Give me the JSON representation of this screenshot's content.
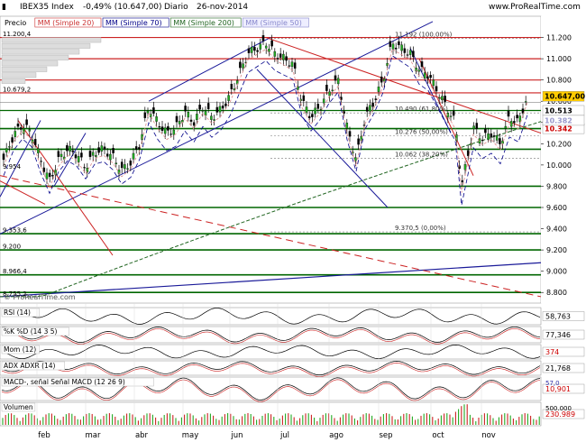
{
  "header": {
    "symbol": "IBEX35 Index",
    "change": "-0,49% (10.647,00)",
    "period": "Diario",
    "date": "26-nov-2014",
    "brand": "www.ProRealTime.com"
  },
  "chart_data": {
    "type": "candlestick",
    "legend": [
      "Precio",
      "MM (Simple 20)",
      "MM (Simple 70)",
      "MM (Simple 200)",
      "MM (Simple 50)"
    ],
    "legend_colors": [
      "#000000",
      "#cc3333",
      "#000088",
      "#226622",
      "#8888cc"
    ],
    "ylim": [
      8700,
      11400
    ],
    "ticks": [
      {
        "v": 11200,
        "l": "11.200"
      },
      {
        "v": 11000,
        "l": "11.000"
      },
      {
        "v": 10800,
        "l": "10.800"
      },
      {
        "v": 10600,
        "l": "10.600"
      },
      {
        "v": 10400,
        "l": "10.400"
      },
      {
        "v": 10200,
        "l": "10.200"
      },
      {
        "v": 10000,
        "l": "10.000"
      },
      {
        "v": 9800,
        "l": "9.800"
      },
      {
        "v": 9600,
        "l": "9.600"
      },
      {
        "v": 9400,
        "l": "9.400"
      },
      {
        "v": 9200,
        "l": "9.200"
      },
      {
        "v": 9000,
        "l": "9.000"
      },
      {
        "v": 8800,
        "l": "8.800"
      }
    ],
    "price_tags": [
      {
        "v": 10647,
        "l": "10.647,00",
        "color": "#ffcc00",
        "fg": "#000000"
      },
      {
        "v": 10513,
        "l": "10.513",
        "color": "#ffffff",
        "fg": "#000000"
      },
      {
        "v": 10342,
        "l": "10.342",
        "color": "#ffffff",
        "fg": "#cc0000"
      },
      {
        "v": 10420,
        "l": "10.382",
        "color": "#ffffff",
        "fg": "#9999cc"
      }
    ],
    "months": [
      "feb",
      "mar",
      "abr",
      "may",
      "jun",
      "jul",
      "ago",
      "sep",
      "oct",
      "nov"
    ],
    "level_labels": [
      {
        "v": 11200,
        "l": "11.200,4",
        "side": "left"
      },
      {
        "v": 10679,
        "l": "10.679,2",
        "side": "left"
      },
      {
        "v": 9954,
        "l": "9.954",
        "side": "left"
      },
      {
        "v": 9353,
        "l": "9.353,6",
        "side": "left"
      },
      {
        "v": 9200,
        "l": "9.200",
        "side": "left"
      },
      {
        "v": 8966,
        "l": "8.966,4",
        "side": "left"
      },
      {
        "v": 8755,
        "l": "8.755,2",
        "side": "left"
      },
      {
        "v": 11190,
        "l": "11.192 (100,00%)",
        "side": "fib"
      },
      {
        "v": 10490,
        "l": "10.490 (61,80%)",
        "side": "fib"
      },
      {
        "v": 10276,
        "l": "10.276 (50,00%)",
        "side": "fib"
      },
      {
        "v": 10062,
        "l": "10.062 (38,20%)",
        "side": "fib"
      },
      {
        "v": 9370,
        "l": "9.370,5 (0,00%)",
        "side": "fib"
      }
    ],
    "watermark": "ProRealTime.com",
    "indicators": [
      {
        "name": "RSI (14)",
        "value": "58,763",
        "color": "#ffffff",
        "fg": "#000000"
      },
      {
        "name": "%K  %D (14 3 5)",
        "value": "77,346",
        "color": "#ffffff",
        "fg": "#000000"
      },
      {
        "name": "Mom (12)",
        "value": "374",
        "color": "#ffffff",
        "fg": "#cc0000"
      },
      {
        "name": "ADX  ADXR (14)",
        "value": "21,768",
        "color": "#ffffff",
        "fg": "#000000"
      },
      {
        "name": "MACD-, señal  Señal  MACD (12 26 9)",
        "value": "10,901",
        "color": "#ffffff",
        "fg": "#cc0000"
      },
      {
        "name": "Volumen",
        "value": "230.989",
        "color": "#ffffff",
        "fg": "#cc0000"
      }
    ],
    "indicator_sub": {
      "macd_top": "57,0",
      "vol_top": "500.000"
    }
  }
}
